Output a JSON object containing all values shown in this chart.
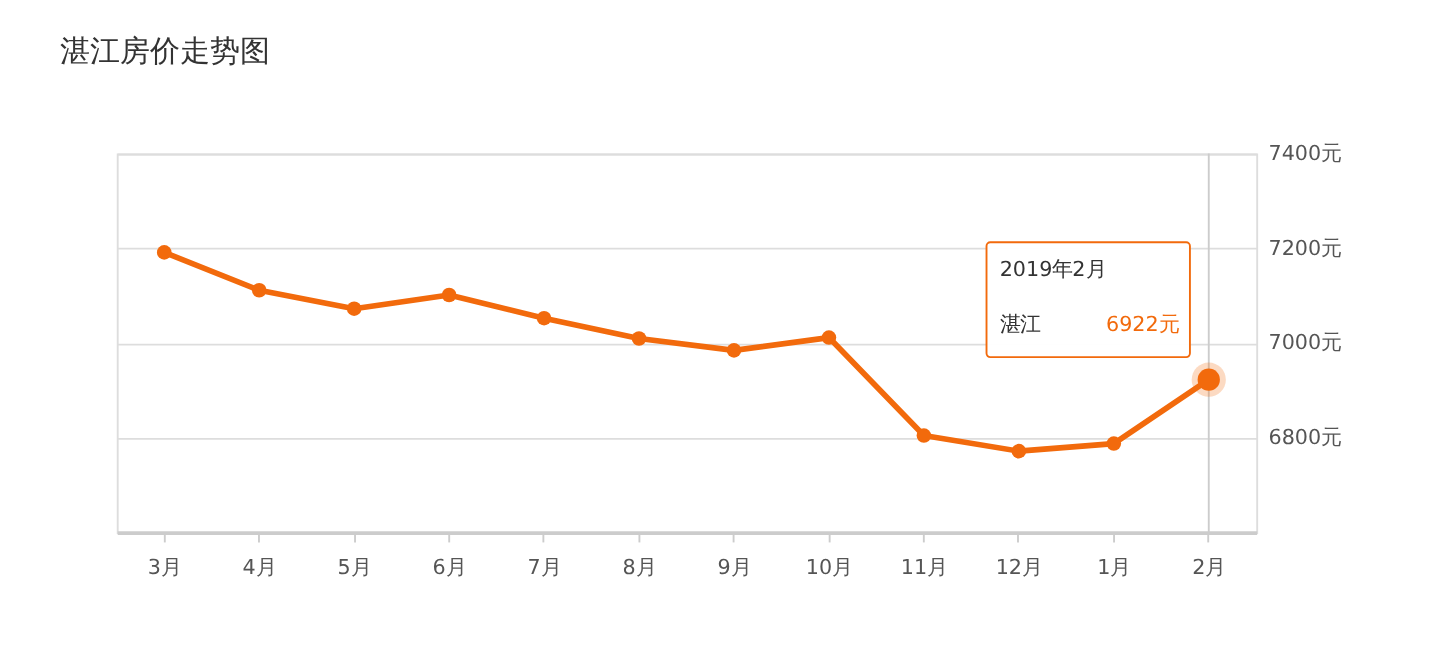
{
  "chart_data": {
    "type": "line",
    "title": "湛江房价走势图",
    "categories": [
      "3月",
      "4月",
      "5月",
      "6月",
      "7月",
      "8月",
      "9月",
      "10月",
      "11月",
      "12月",
      "1月",
      "2月"
    ],
    "series": [
      {
        "name": "湛江",
        "color": "#f26a0c",
        "values": [
          7191,
          7111,
          7072,
          7101,
          7052,
          7009,
          6984,
          7011,
          6804,
          6771,
          6787,
          6922
        ],
        "value_labels": [
          null,
          null,
          null,
          null,
          null,
          null,
          null,
          null,
          null,
          null,
          null,
          "6922元"
        ]
      }
    ],
    "ylim": [
      6600,
      7400
    ],
    "yticks": [
      {
        "value": 6800,
        "label": "6800元"
      },
      {
        "value": 7000,
        "label": "7000元"
      },
      {
        "value": 7200,
        "label": "7200元"
      },
      {
        "value": 7400,
        "label": "7400元"
      }
    ],
    "grid": "y",
    "marker": "circle",
    "line_style": "solid",
    "ref_lines": [
      {
        "axis": "x",
        "value": "2月",
        "label": null,
        "color": "#cccccc"
      }
    ],
    "annotations": [
      "2019年2月"
    ]
  }
}
